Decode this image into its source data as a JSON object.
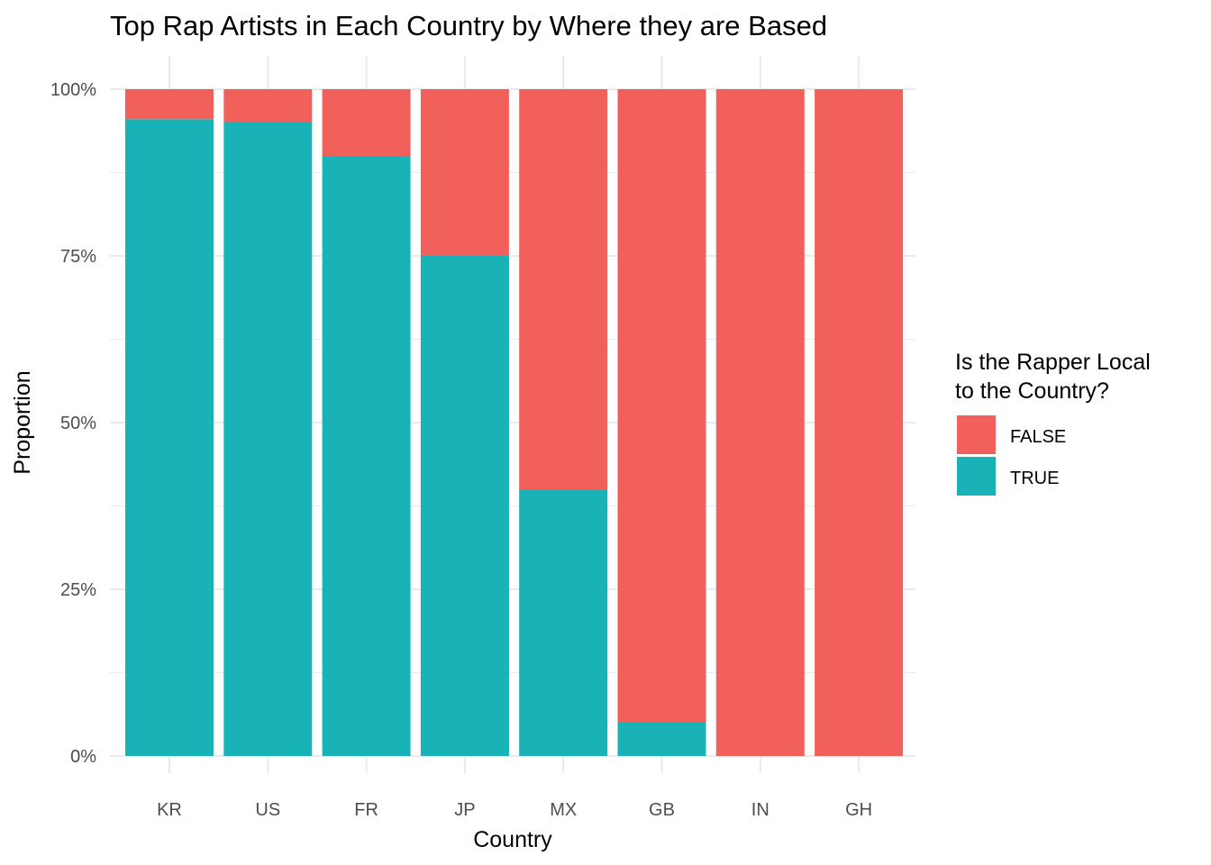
{
  "chart_data": {
    "type": "bar",
    "stacked": "proportion",
    "title": "Top Rap Artists in Each Country by Where they are Based",
    "xlabel": "Country",
    "ylabel": "Proportion",
    "categories": [
      "KR",
      "US",
      "FR",
      "JP",
      "MX",
      "GB",
      "IN",
      "GH"
    ],
    "series": [
      {
        "name": "TRUE",
        "values": [
          0.955,
          0.95,
          0.9,
          0.75,
          0.4,
          0.05,
          0.0,
          0.0
        ],
        "color": "#19B3B7"
      },
      {
        "name": "FALSE",
        "values": [
          0.045,
          0.05,
          0.1,
          0.25,
          0.6,
          0.95,
          1.0,
          1.0
        ],
        "color": "#F2605C"
      }
    ],
    "ylim": [
      0,
      1
    ],
    "yticks": [
      0,
      0.25,
      0.5,
      0.75,
      1
    ],
    "ytick_labels": [
      "0%",
      "25%",
      "50%",
      "75%",
      "100%"
    ],
    "grid": true,
    "legend": {
      "title_lines": [
        "Is the Rapper Local",
        "to the Country?"
      ],
      "entries": [
        {
          "label": "FALSE",
          "color": "#F2605C"
        },
        {
          "label": "TRUE",
          "color": "#19B3B7"
        }
      ],
      "position": "right"
    }
  }
}
